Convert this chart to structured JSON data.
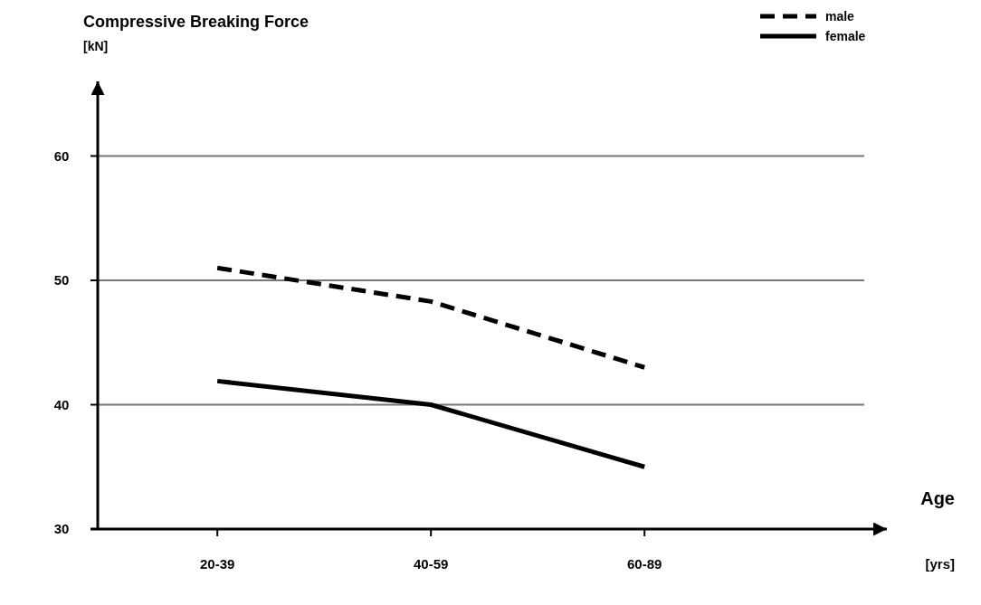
{
  "chart_data": {
    "type": "line",
    "title": "Compressive Breaking Force",
    "ylabel": "[kN]",
    "xlabel": "Age",
    "annotations": [
      "[yrs]"
    ],
    "categories": [
      "20-39",
      "40-59",
      "60-89"
    ],
    "series": [
      {
        "name": "male",
        "color": "#000000",
        "values": [
          51,
          48.3,
          43
        ],
        "line_style": "dashed"
      },
      {
        "name": "female",
        "color": "#000000",
        "values": [
          41.9,
          40,
          35
        ],
        "line_style": "solid"
      }
    ],
    "ylim": [
      30,
      66
    ],
    "yticks": [
      30,
      40,
      50,
      60
    ],
    "grid": "y",
    "legend": "top right",
    "marker": "none"
  }
}
